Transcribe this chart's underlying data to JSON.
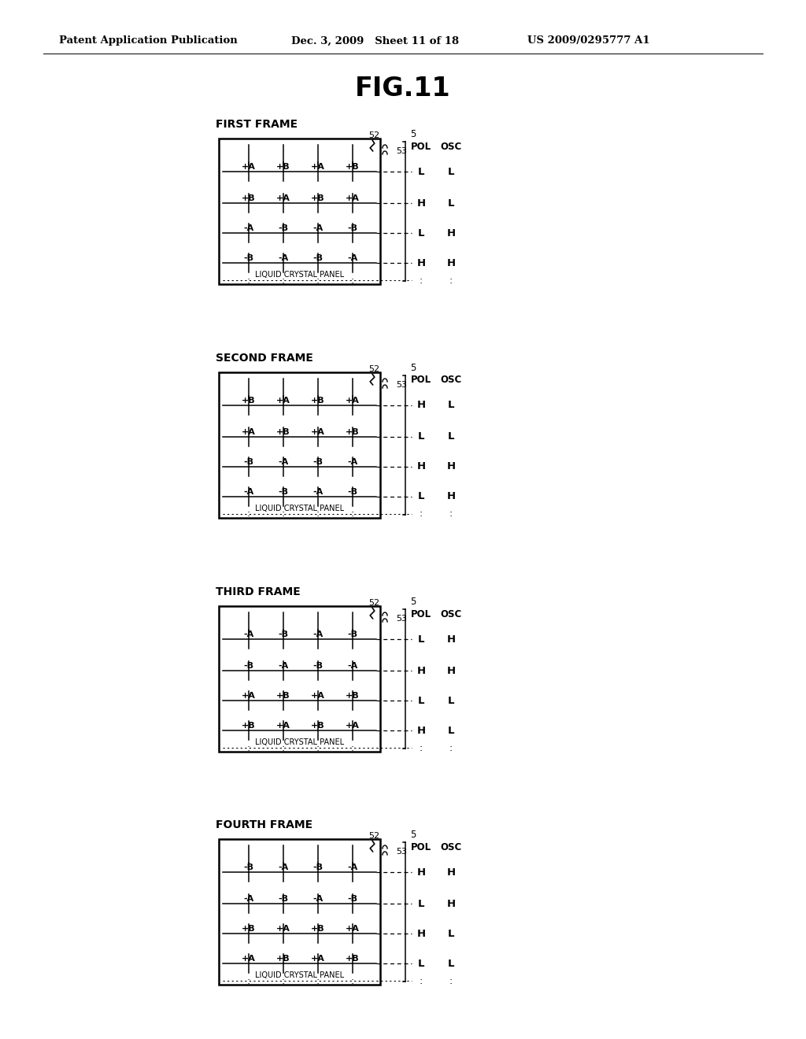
{
  "title": "FIG.11",
  "header_left": "Patent Application Publication",
  "header_mid": "Dec. 3, 2009   Sheet 11 of 18",
  "header_right": "US 2009/0295777 A1",
  "frames": [
    {
      "label": "FIRST FRAME",
      "rows": [
        {
          "signs": [
            "+",
            "+",
            "+",
            "+"
          ],
          "letters": [
            "A",
            "B",
            "A",
            "B"
          ]
        },
        {
          "signs": [
            "+",
            "+",
            "+",
            "+"
          ],
          "letters": [
            "B",
            "A",
            "B",
            "A"
          ]
        },
        {
          "signs": [
            "-",
            "-",
            "-",
            "-"
          ],
          "letters": [
            "A",
            "B",
            "A",
            "B"
          ]
        },
        {
          "signs": [
            "-",
            "-",
            "-",
            "-"
          ],
          "letters": [
            "B",
            "A",
            "B",
            "A"
          ]
        }
      ],
      "pol_osc": [
        [
          "L",
          "L"
        ],
        [
          "H",
          "L"
        ],
        [
          "L",
          "H"
        ],
        [
          "H",
          "H"
        ]
      ]
    },
    {
      "label": "SECOND FRAME",
      "rows": [
        {
          "signs": [
            "+",
            "+",
            "+",
            "+"
          ],
          "letters": [
            "B",
            "A",
            "B",
            "A"
          ]
        },
        {
          "signs": [
            "+",
            "+",
            "+",
            "+"
          ],
          "letters": [
            "A",
            "B",
            "A",
            "B"
          ]
        },
        {
          "signs": [
            "-",
            "-",
            "-",
            "-"
          ],
          "letters": [
            "B",
            "A",
            "B",
            "A"
          ]
        },
        {
          "signs": [
            "-",
            "-",
            "-",
            "-"
          ],
          "letters": [
            "A",
            "B",
            "A",
            "B"
          ]
        }
      ],
      "pol_osc": [
        [
          "H",
          "L"
        ],
        [
          "L",
          "L"
        ],
        [
          "H",
          "H"
        ],
        [
          "L",
          "H"
        ]
      ]
    },
    {
      "label": "THIRD FRAME",
      "rows": [
        {
          "signs": [
            "-",
            "-",
            "-",
            "-"
          ],
          "letters": [
            "A",
            "B",
            "A",
            "B"
          ]
        },
        {
          "signs": [
            "-",
            "-",
            "-",
            "-"
          ],
          "letters": [
            "B",
            "A",
            "B",
            "A"
          ]
        },
        {
          "signs": [
            "+",
            "+",
            "+",
            "+"
          ],
          "letters": [
            "A",
            "B",
            "A",
            "B"
          ]
        },
        {
          "signs": [
            "+",
            "+",
            "+",
            "+"
          ],
          "letters": [
            "B",
            "A",
            "B",
            "A"
          ]
        }
      ],
      "pol_osc": [
        [
          "L",
          "H"
        ],
        [
          "H",
          "H"
        ],
        [
          "L",
          "L"
        ],
        [
          "H",
          "L"
        ]
      ]
    },
    {
      "label": "FOURTH FRAME",
      "rows": [
        {
          "signs": [
            "-",
            "-",
            "-",
            "-"
          ],
          "letters": [
            "B",
            "A",
            "B",
            "A"
          ]
        },
        {
          "signs": [
            "-",
            "-",
            "-",
            "-"
          ],
          "letters": [
            "A",
            "B",
            "A",
            "B"
          ]
        },
        {
          "signs": [
            "+",
            "+",
            "+",
            "+"
          ],
          "letters": [
            "B",
            "A",
            "B",
            "A"
          ]
        },
        {
          "signs": [
            "+",
            "+",
            "+",
            "+"
          ],
          "letters": [
            "A",
            "B",
            "A",
            "B"
          ]
        }
      ],
      "pol_osc": [
        [
          "H",
          "H"
        ],
        [
          "L",
          "H"
        ],
        [
          "H",
          "L"
        ],
        [
          "L",
          "L"
        ]
      ]
    }
  ],
  "panel_label": "LIQUID CRYSTAL PANEL",
  "bg_color": "#ffffff"
}
